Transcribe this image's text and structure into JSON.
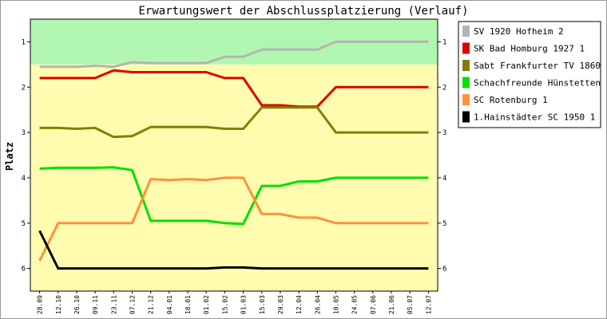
{
  "chart_data": {
    "type": "line",
    "title": "Erwartungswert der Abschlussplatzierung (Verlauf)",
    "ylabel": "Platz",
    "ylim": [
      6.5,
      0.5
    ],
    "yticks": [
      1,
      2,
      3,
      4,
      5,
      6
    ],
    "y_inverted": true,
    "bands": [
      {
        "from": 0.5,
        "to": 1.5,
        "color": "#b0f6b0"
      },
      {
        "from": 1.5,
        "to": 6.5,
        "color": "#fffcb0"
      }
    ],
    "x": [
      "28.09",
      "12.10",
      "26.10",
      "09.11",
      "23.11",
      "07.12",
      "21.12",
      "04.01",
      "18.01",
      "01.02",
      "15.02",
      "01.03",
      "15.03",
      "29.03",
      "12.04",
      "26.04",
      "10.05",
      "24.05",
      "07.06",
      "21.06",
      "05.07",
      "12.07"
    ],
    "legend_position": "right",
    "series": [
      {
        "name": "SV 1920 Hofheim 2",
        "color": "#b4b4b4",
        "values": [
          1.55,
          1.55,
          1.55,
          1.53,
          1.55,
          1.45,
          1.47,
          1.47,
          1.47,
          1.47,
          1.33,
          1.33,
          1.17,
          1.17,
          1.17,
          1.17,
          1.0,
          1.0,
          1.0,
          1.0,
          1.0,
          1.0
        ]
      },
      {
        "name": "SK Bad Homburg 1927 1",
        "color": "#e00000",
        "values": [
          1.8,
          1.8,
          1.8,
          1.8,
          1.63,
          1.67,
          1.67,
          1.67,
          1.67,
          1.67,
          1.8,
          1.8,
          2.4,
          2.4,
          2.43,
          2.43,
          2.0,
          2.0,
          2.0,
          2.0,
          2.0,
          2.0
        ]
      },
      {
        "name": "Sabt Frankfurter TV 1860 1",
        "color": "#808000",
        "values": [
          2.9,
          2.9,
          2.92,
          2.9,
          3.1,
          3.08,
          2.88,
          2.88,
          2.88,
          2.88,
          2.92,
          2.92,
          2.45,
          2.45,
          2.45,
          2.45,
          3.0,
          3.0,
          3.0,
          3.0,
          3.0,
          3.0
        ]
      },
      {
        "name": "Schachfreunde Hünstetten 1",
        "color": "#00e000",
        "values": [
          3.8,
          3.78,
          3.78,
          3.78,
          3.77,
          3.83,
          4.95,
          4.95,
          4.95,
          4.95,
          5.0,
          5.02,
          4.18,
          4.18,
          4.08,
          4.08,
          4.0,
          4.0,
          4.0,
          4.0,
          4.0,
          4.0
        ]
      },
      {
        "name": "SC Rotenburg 1",
        "color": "#ff9040",
        "values": [
          5.83,
          5.0,
          5.0,
          5.0,
          5.0,
          5.0,
          4.03,
          4.05,
          4.03,
          4.05,
          4.0,
          4.0,
          4.8,
          4.8,
          4.88,
          4.88,
          5.0,
          5.0,
          5.0,
          5.0,
          5.0,
          5.0
        ]
      },
      {
        "name": "1.Hainstädter SC 1950 1",
        "color": "#000000",
        "values": [
          5.17,
          6.0,
          6.0,
          6.0,
          6.0,
          6.0,
          6.0,
          6.0,
          6.0,
          6.0,
          5.98,
          5.98,
          6.0,
          6.0,
          6.0,
          6.0,
          6.0,
          6.0,
          6.0,
          6.0,
          6.0,
          6.0
        ]
      }
    ]
  }
}
